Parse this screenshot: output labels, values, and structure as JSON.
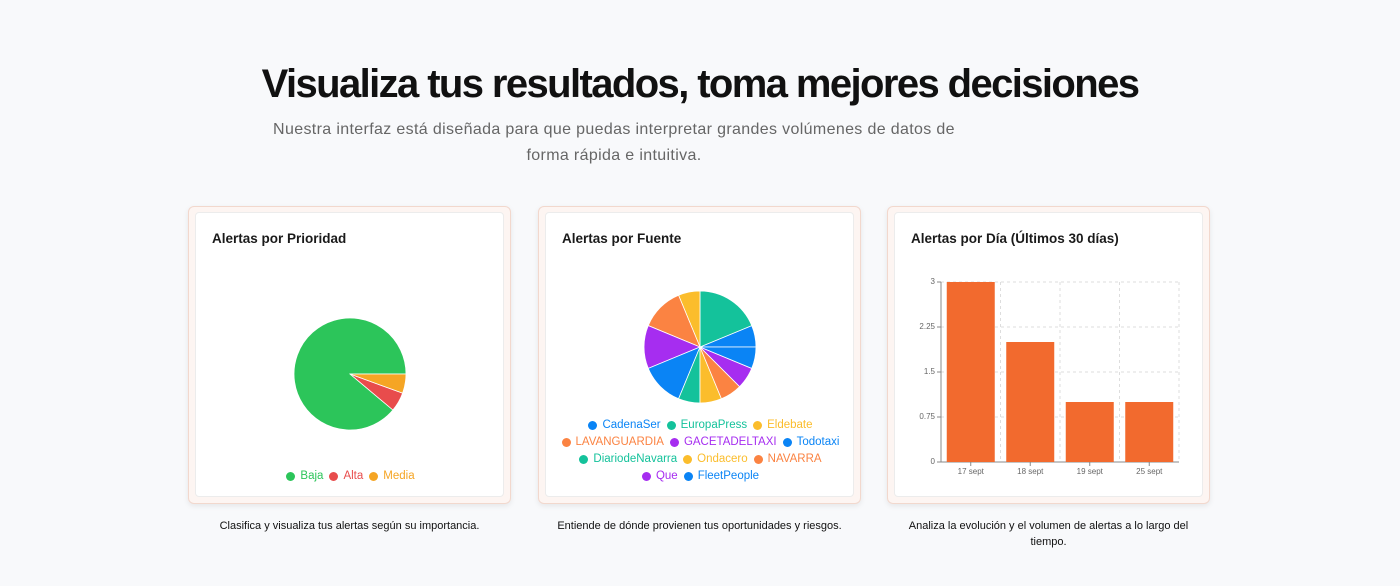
{
  "header": {
    "title": "Visualiza tus resultados, toma mejores decisiones",
    "subtitle": "Nuestra interfaz está diseñada para que puedas interpretar grandes volúmenes de datos de forma rápida e intuitiva."
  },
  "chart_data": [
    {
      "type": "pie",
      "title": "Alertas por Prioridad",
      "categories": [
        "Baja",
        "Alta",
        "Media"
      ],
      "values": [
        16,
        1,
        1
      ],
      "colors": [
        "#2cc55a",
        "#e84c4c",
        "#f5a524"
      ],
      "caption": "Clasifica y visualiza tus alertas según su importancia."
    },
    {
      "type": "pie",
      "title": "Alertas por Fuente",
      "categories": [
        "CadenaSer",
        "EuropaPress",
        "Eldebate",
        "LAVANGUARDIA",
        "GACETADELTAXI",
        "Todotaxi",
        "DiariodeNavarra",
        "Ondacero",
        "NAVARRA",
        "Que",
        "FleetPeople"
      ],
      "values": [
        1,
        3,
        1,
        2,
        2,
        2,
        1,
        1,
        1,
        1,
        1
      ],
      "colors": [
        "#0a84f5",
        "#14c29b",
        "#fbbd2c",
        "#fb8342",
        "#a62df0",
        "#0a84f5",
        "#14c29b",
        "#fbbd2c",
        "#fb8342",
        "#a62df0",
        "#0a84f5"
      ],
      "caption": "Entiende de dónde provienen tus oportunidades y riesgos."
    },
    {
      "type": "bar",
      "title": "Alertas por Día (Últimos 30 días)",
      "categories": [
        "17 sept",
        "18 sept",
        "19 sept",
        "25 sept"
      ],
      "values": [
        3,
        2,
        1,
        1
      ],
      "color": "#f26a2e",
      "ylim": [
        0,
        3
      ],
      "yticks": [
        0,
        0.75,
        1.5,
        2.25,
        3
      ],
      "grid": true,
      "caption": "Analiza la evolución y el volumen de alertas a lo largo del tiempo."
    }
  ]
}
